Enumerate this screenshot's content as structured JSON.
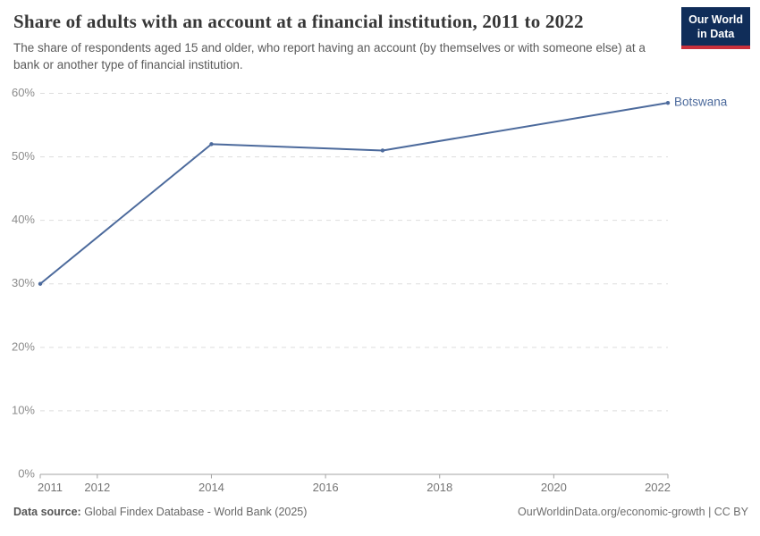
{
  "header": {
    "title": "Share of adults with an account at a financial institution, 2011 to 2022",
    "subtitle": "The share of respondents aged 15 and older, who report having an account (by themselves or with someone else) at a bank or another type of financial institution.",
    "logo": {
      "line1": "Our World",
      "line2": "in Data"
    }
  },
  "chart_data": {
    "type": "line",
    "title": "Share of adults with an account at a financial institution, 2011 to 2022",
    "series": [
      {
        "name": "Botswana",
        "color": "#4C6A9C",
        "x": [
          2011,
          2014,
          2017,
          2022
        ],
        "values": [
          30,
          52,
          51,
          58.5
        ]
      }
    ],
    "xlabel": "",
    "ylabel": "",
    "xlim": [
      2011,
      2022
    ],
    "ylim": [
      0,
      60
    ],
    "xticks": [
      2011,
      2012,
      2014,
      2016,
      2018,
      2020,
      2022
    ],
    "yticks": [
      0,
      10,
      20,
      30,
      40,
      50,
      60
    ],
    "ytick_suffix": "%",
    "grid": "horizontal-dashed",
    "legend_position": "end-of-line-label"
  },
  "footer": {
    "datasource_label": "Data source:",
    "datasource_value": " Global Findex Database - World Bank (2025)",
    "right_text": "OurWorldinData.org/economic-growth | CC BY"
  },
  "colors": {
    "series_line": "#4C6A9C",
    "gridline": "#dddddd",
    "axis": "#a3a3a3",
    "y_tick_label": "#8c8c8c",
    "x_tick_label": "#757575",
    "title_text": "#373737",
    "subtitle_text": "#5a5a5a",
    "footer_text": "#666666",
    "logo_background": "#102d59",
    "logo_accent": "#c9303c",
    "background": "#ffffff"
  }
}
